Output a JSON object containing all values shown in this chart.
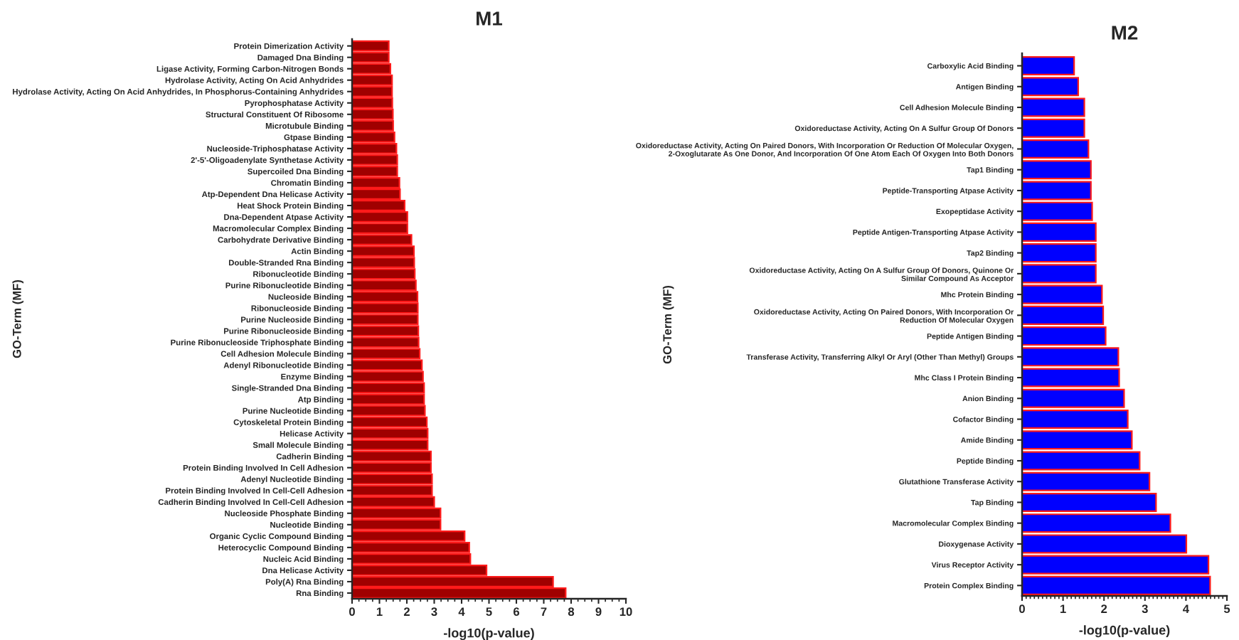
{
  "chart_data": [
    {
      "type": "bar",
      "orientation": "horizontal",
      "title": "M1",
      "xlabel": "-log10(p-value)",
      "ylabel": "GO-Term (MF)",
      "xlim": [
        0,
        10
      ],
      "xticks": [
        0,
        1,
        2,
        3,
        4,
        5,
        6,
        7,
        8,
        9,
        10
      ],
      "grid": false,
      "legend": false,
      "categories": [
        "Protein Dimerization Activity",
        "Damaged Dna Binding",
        "Ligase Activity, Forming Carbon-Nitrogen Bonds",
        "Hydrolase Activity, Acting On Acid Anhydrides",
        "Hydrolase Activity, Acting On Acid Anhydrides, In Phosphorus-Containing Anhydrides",
        "Pyrophosphatase Activity",
        "Structural Constituent Of Ribosome",
        "Microtubule Binding",
        "Gtpase Binding",
        "Nucleoside-Triphosphatase Activity",
        "2'-5'-Oligoadenylate Synthetase Activity",
        "Supercoiled Dna Binding",
        "Chromatin Binding",
        "Atp-Dependent Dna Helicase Activity",
        "Heat Shock Protein Binding",
        "Dna-Dependent Atpase Activity",
        "Macromolecular Complex Binding",
        "Carbohydrate Derivative Binding",
        "Actin Binding",
        "Double-Stranded Rna Binding",
        "Ribonucleotide Binding",
        "Purine Ribonucleotide Binding",
        "Nucleoside Binding",
        "Ribonucleoside Binding",
        "Purine Nucleoside Binding",
        "Purine Ribonucleoside Binding",
        "Purine Ribonucleoside Triphosphate Binding",
        "Cell Adhesion Molecule Binding",
        "Adenyl Ribonucleotide Binding",
        "Enzyme Binding",
        "Single-Stranded Dna Binding",
        "Atp Binding",
        "Purine Nucleotide Binding",
        "Cytoskeletal Protein Binding",
        "Helicase Activity",
        "Small Molecule Binding",
        "Cadherin Binding",
        "Protein Binding Involved In Cell Adhesion",
        "Adenyl Nucleotide Binding",
        "Protein Binding Involved In Cell-Cell Adhesion",
        "Cadherin Binding Involved In Cell-Cell Adhesion",
        "Nucleoside Phosphate Binding",
        "Nucleotide Binding",
        "Organic Cyclic Compound Binding",
        "Heterocyclic Compound Binding",
        "Nucleic Acid Binding",
        "Dna Helicase Activity",
        "Poly(A) Rna Binding",
        "Rna Binding"
      ],
      "series": [
        {
          "color": "#a00000",
          "values": [
            1.34,
            1.34,
            1.4,
            1.46,
            1.46,
            1.47,
            1.49,
            1.5,
            1.55,
            1.62,
            1.65,
            1.65,
            1.73,
            1.75,
            1.92,
            2.02,
            2.02,
            2.17,
            2.26,
            2.27,
            2.29,
            2.33,
            2.39,
            2.4,
            2.4,
            2.42,
            2.43,
            2.47,
            2.55,
            2.59,
            2.63,
            2.63,
            2.66,
            2.73,
            2.76,
            2.76,
            2.88,
            2.88,
            2.92,
            2.92,
            3.0,
            3.23,
            3.23,
            4.11,
            4.28,
            4.32,
            4.91,
            7.34,
            7.8
          ]
        }
      ]
    },
    {
      "type": "bar",
      "orientation": "horizontal",
      "title": "M2",
      "xlabel": "-log10(p-value)",
      "ylabel": "GO-Term (MF)",
      "xlim": [
        0,
        5
      ],
      "xticks": [
        0,
        1,
        2,
        3,
        4,
        5
      ],
      "grid": false,
      "legend": false,
      "categories": [
        "Carboxylic Acid Binding",
        "Antigen Binding",
        "Cell Adhesion Molecule Binding",
        "Oxidoreductase Activity, Acting On A Sulfur Group Of Donors",
        "Oxidoreductase Activity, Acting On Paired Donors, With Incorporation Or Reduction Of Molecular Oxygen,\n2-Oxoglutarate As One Donor, And Incorporation Of One Atom Each Of Oxygen Into Both Donors",
        "Tap1 Binding",
        "Peptide-Transporting Atpase Activity",
        "Exopeptidase Activity",
        "Peptide Antigen-Transporting Atpase Activity",
        "Tap2 Binding",
        "Oxidoreductase Activity, Acting On A Sulfur Group Of Donors, Quinone Or\nSimilar Compound As Acceptor",
        "Mhc Protein Binding",
        "Oxidoreductase Activity, Acting On Paired Donors, With Incorporation Or\nReduction Of Molecular Oxygen",
        "Peptide Antigen Binding",
        "Transferase Activity, Transferring Alkyl Or Aryl (Other Than Methyl) Groups",
        "Mhc Class I Protein Binding",
        "Anion Binding",
        "Cofactor Binding",
        "Amide Binding",
        "Peptide Binding",
        "Glutathione Transferase Activity",
        "Tap Binding",
        "Macromolecular Complex Binding",
        "Dioxygenase Activity",
        "Virus Receptor Activity",
        "Protein Complex Binding"
      ],
      "series": [
        {
          "color": "#0000ff",
          "values": [
            1.27,
            1.37,
            1.52,
            1.52,
            1.62,
            1.68,
            1.68,
            1.71,
            1.8,
            1.8,
            1.8,
            1.95,
            1.98,
            2.04,
            2.35,
            2.37,
            2.49,
            2.58,
            2.68,
            2.87,
            3.11,
            3.27,
            3.62,
            4.01,
            4.55,
            4.59
          ]
        }
      ]
    }
  ]
}
